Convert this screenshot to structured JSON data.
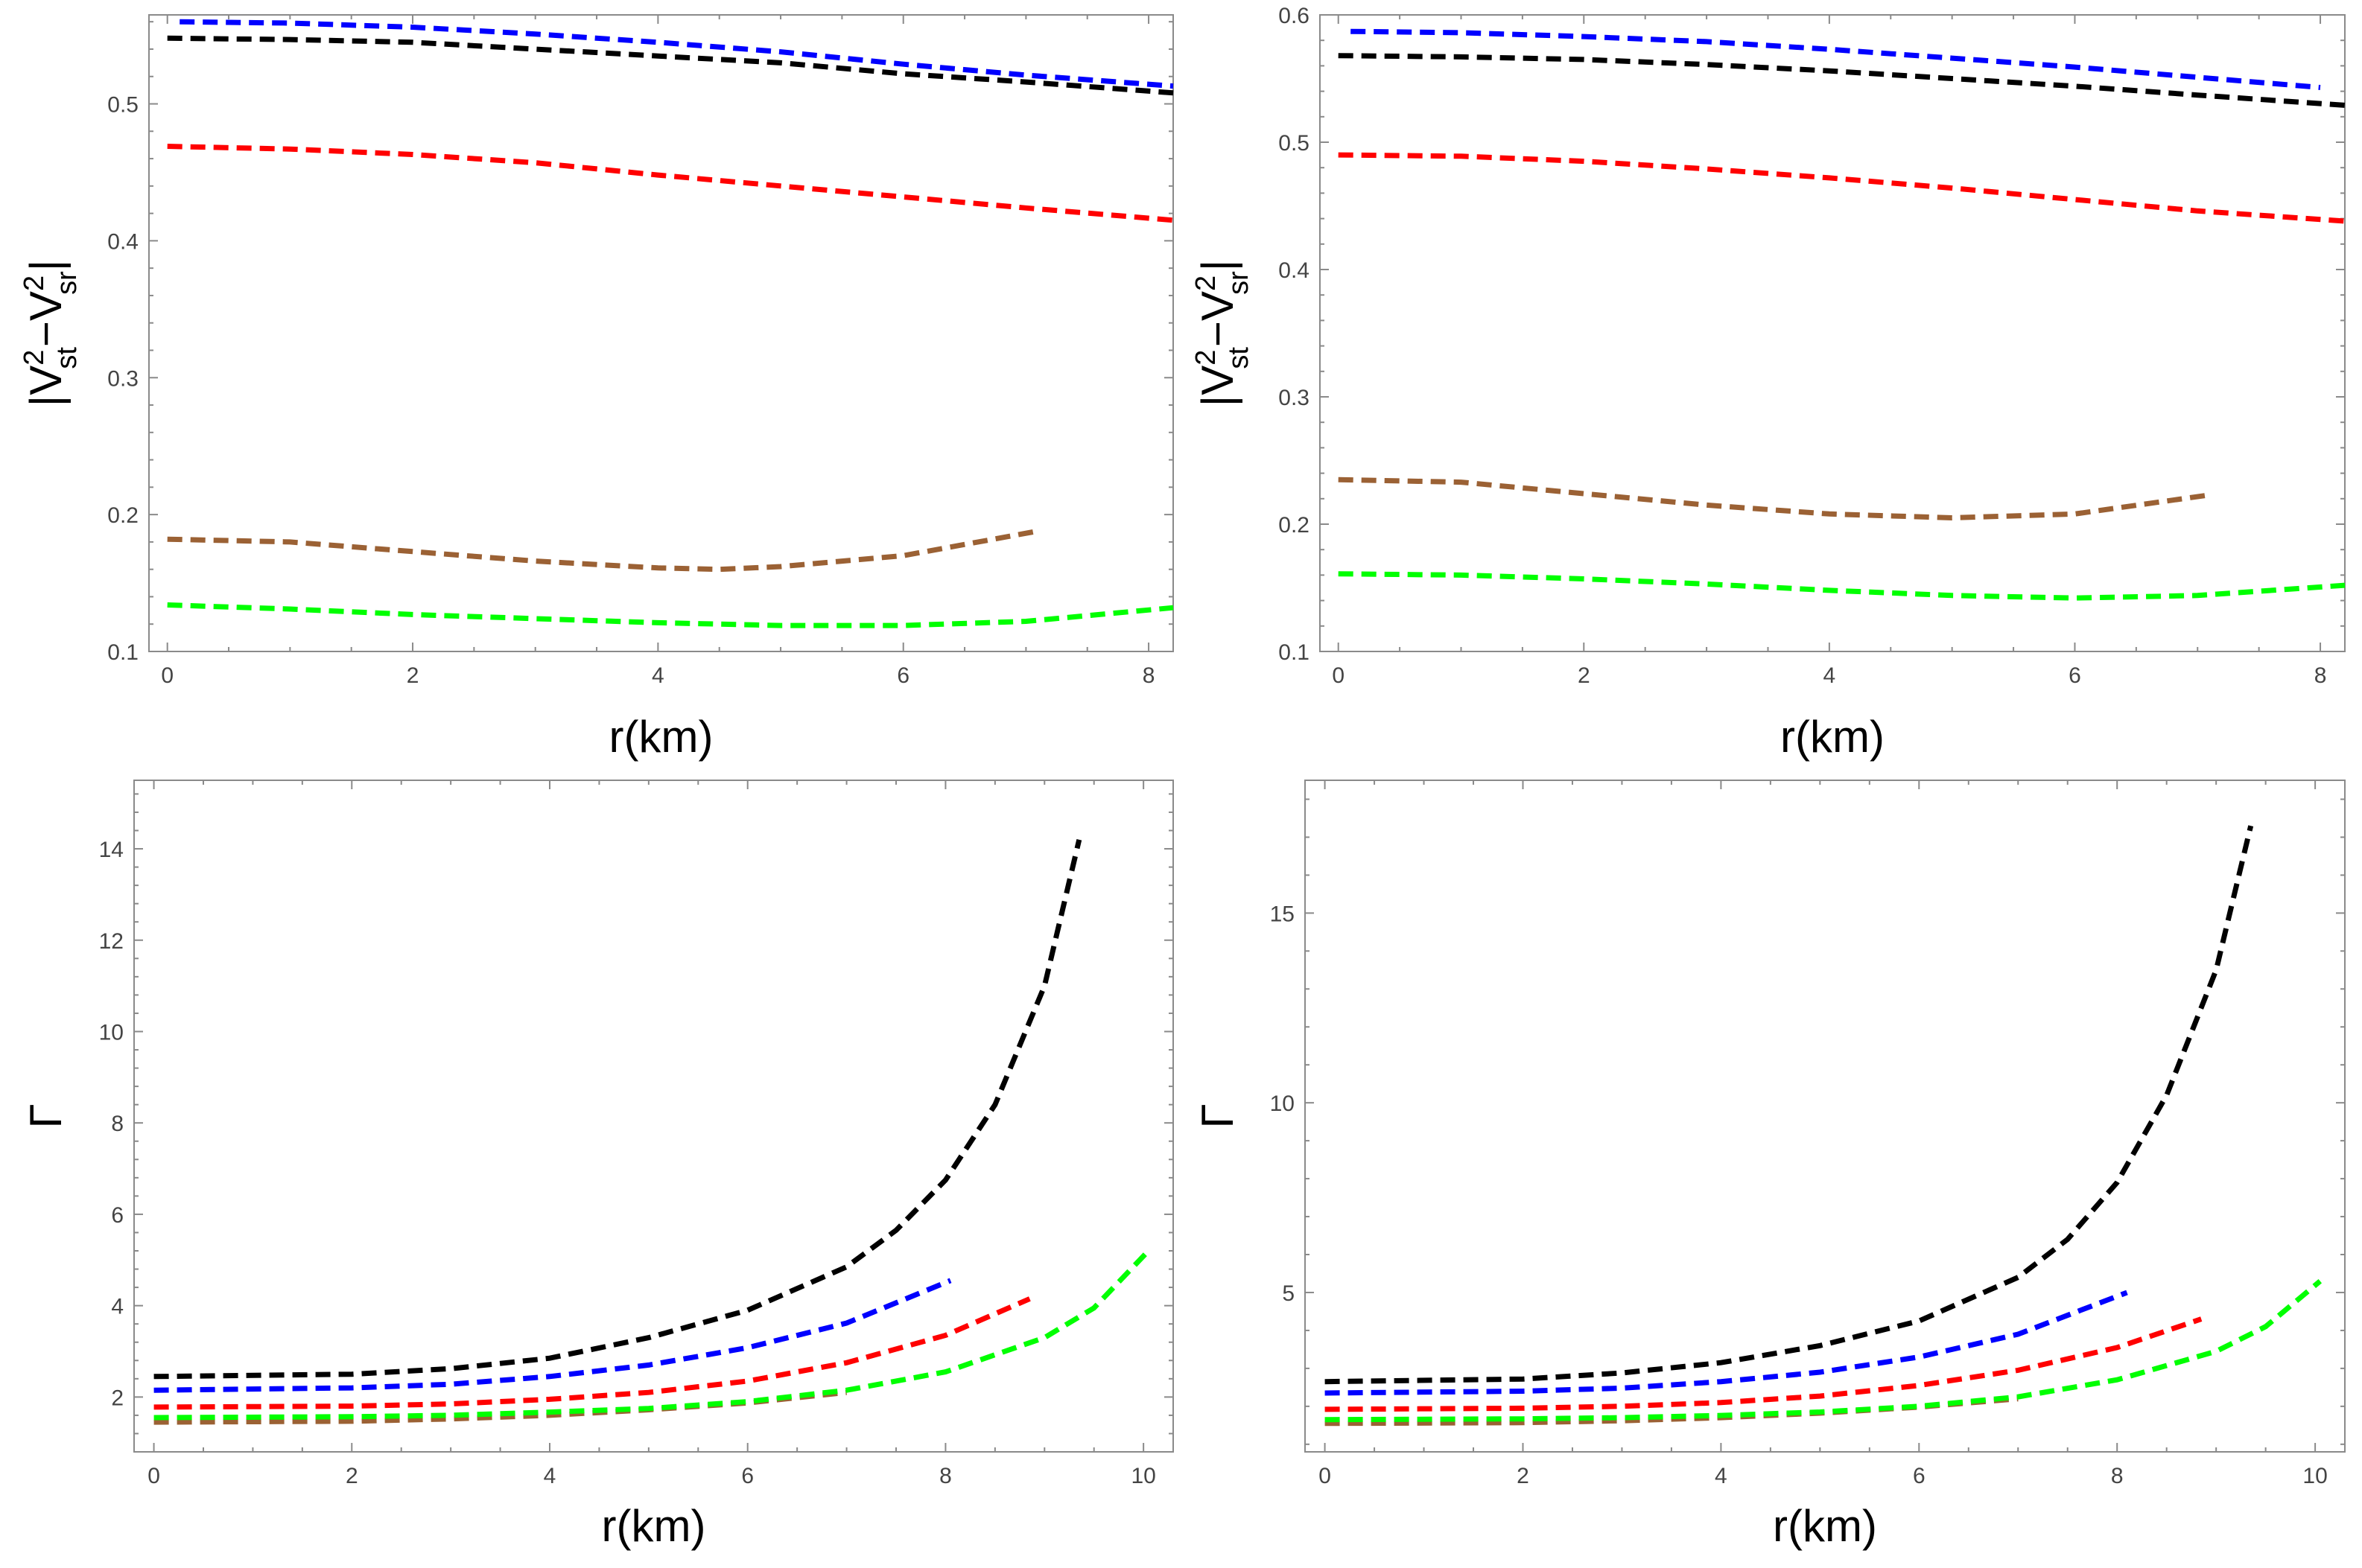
{
  "figure": {
    "description_panels": 4
  },
  "chart_data": [
    {
      "type": "line",
      "panel": "top-left",
      "title": "",
      "xlabel": "r(km)",
      "ylabel": "|V²st−V²sr|",
      "ylabel_parts": {
        "open": "|V",
        "sup1": "2",
        "sub1": "st",
        "mid": "−V",
        "sup2": "2",
        "sub2": "sr",
        "close": "|"
      },
      "xlim": [
        -0.15,
        8.2
      ],
      "ylim": [
        0.1,
        0.565
      ],
      "xticks": [
        0,
        2,
        4,
        6,
        8
      ],
      "yticks": [
        0.1,
        0.2,
        0.3,
        0.4,
        0.5
      ],
      "ytick_labels": [
        "0.1",
        "0.2",
        "0.3",
        "0.4",
        "0.5"
      ],
      "series": [
        {
          "name": "blue",
          "color": "#0000ff",
          "x": [
            0.1,
            1,
            2,
            3,
            4,
            5,
            6,
            7,
            8.2
          ],
          "y": [
            0.56,
            0.559,
            0.556,
            0.551,
            0.545,
            0.538,
            0.529,
            0.521,
            0.513
          ]
        },
        {
          "name": "black",
          "color": "#000000",
          "x": [
            0,
            1,
            2,
            3,
            4,
            5,
            6,
            7,
            8.2
          ],
          "y": [
            0.548,
            0.547,
            0.545,
            0.54,
            0.535,
            0.53,
            0.522,
            0.516,
            0.508
          ]
        },
        {
          "name": "red",
          "color": "#ff0000",
          "x": [
            0,
            1,
            2,
            3,
            4,
            5,
            6,
            7,
            8.2
          ],
          "y": [
            0.469,
            0.467,
            0.463,
            0.457,
            0.448,
            0.44,
            0.432,
            0.424,
            0.415
          ]
        },
        {
          "name": "brown",
          "color": "#9b6134",
          "x": [
            0,
            1,
            2,
            3,
            4,
            4.5,
            5,
            6,
            7.1
          ],
          "y": [
            0.182,
            0.18,
            0.173,
            0.166,
            0.161,
            0.16,
            0.162,
            0.17,
            0.188
          ]
        },
        {
          "name": "green",
          "color": "#00ff00",
          "x": [
            0,
            1,
            2,
            3,
            4,
            5,
            6,
            7,
            8.2
          ],
          "y": [
            0.134,
            0.131,
            0.127,
            0.124,
            0.121,
            0.119,
            0.119,
            0.122,
            0.132
          ]
        }
      ]
    },
    {
      "type": "line",
      "panel": "top-right",
      "title": "",
      "xlabel": "r(km)",
      "ylabel": "|V²st−V²sr|",
      "ylabel_parts": {
        "open": "|V",
        "sup1": "2",
        "sub1": "st",
        "mid": "−V",
        "sup2": "2",
        "sub2": "sr",
        "close": "|"
      },
      "xlim": [
        -0.15,
        8.2
      ],
      "ylim": [
        0.1,
        0.6
      ],
      "xticks": [
        0,
        2,
        4,
        6,
        8
      ],
      "yticks": [
        0.1,
        0.2,
        0.3,
        0.4,
        0.5,
        0.6
      ],
      "ytick_labels": [
        "0.1",
        "0.2",
        "0.3",
        "0.4",
        "0.5",
        "0.6"
      ],
      "series": [
        {
          "name": "blue",
          "color": "#0000ff",
          "x": [
            0.1,
            1,
            2,
            3,
            4,
            5,
            6,
            7,
            8
          ],
          "y": [
            0.587,
            0.586,
            0.583,
            0.579,
            0.573,
            0.566,
            0.559,
            0.551,
            0.543
          ]
        },
        {
          "name": "black",
          "color": "#000000",
          "x": [
            0,
            1,
            2,
            3,
            4,
            5,
            6,
            7,
            8.2
          ],
          "y": [
            0.568,
            0.567,
            0.565,
            0.561,
            0.556,
            0.55,
            0.544,
            0.537,
            0.529
          ]
        },
        {
          "name": "red",
          "color": "#ff0000",
          "x": [
            0,
            1,
            2,
            3,
            4,
            5,
            6,
            7,
            8.2
          ],
          "y": [
            0.49,
            0.489,
            0.485,
            0.479,
            0.472,
            0.464,
            0.455,
            0.446,
            0.438
          ]
        },
        {
          "name": "brown",
          "color": "#9b6134",
          "x": [
            0,
            1,
            2,
            3,
            4,
            5,
            6,
            7.1
          ],
          "y": [
            0.235,
            0.233,
            0.224,
            0.215,
            0.208,
            0.205,
            0.208,
            0.223
          ]
        },
        {
          "name": "green",
          "color": "#00ff00",
          "x": [
            0,
            1,
            2,
            3,
            4,
            5,
            6,
            7,
            8.2
          ],
          "y": [
            0.161,
            0.16,
            0.157,
            0.153,
            0.148,
            0.144,
            0.142,
            0.144,
            0.152
          ]
        }
      ]
    },
    {
      "type": "line",
      "panel": "bottom-left",
      "title": "",
      "xlabel": "r(km)",
      "ylabel": "Γ",
      "xlim": [
        -0.2,
        10.3
      ],
      "ylim": [
        0.8,
        15.5
      ],
      "xticks": [
        0,
        2,
        4,
        6,
        8,
        10
      ],
      "yticks": [
        2,
        4,
        6,
        8,
        10,
        12,
        14
      ],
      "ytick_labels": [
        "2",
        "4",
        "6",
        "8",
        "10",
        "12",
        "14"
      ],
      "series": [
        {
          "name": "black",
          "color": "#000000",
          "x": [
            0,
            2,
            3,
            4,
            5,
            6,
            7,
            7.5,
            8,
            8.5,
            9,
            9.35
          ],
          "y": [
            2.45,
            2.5,
            2.62,
            2.85,
            3.3,
            3.9,
            4.85,
            5.65,
            6.75,
            8.4,
            11.0,
            14.2
          ]
        },
        {
          "name": "blue",
          "color": "#0000ff",
          "x": [
            0,
            2,
            3,
            4,
            5,
            6,
            7,
            8.05
          ],
          "y": [
            2.15,
            2.2,
            2.28,
            2.45,
            2.7,
            3.08,
            3.62,
            4.55
          ]
        },
        {
          "name": "red",
          "color": "#ff0000",
          "x": [
            0,
            2,
            3,
            4,
            5,
            6,
            7,
            8,
            8.85
          ],
          "y": [
            1.78,
            1.8,
            1.85,
            1.95,
            2.1,
            2.35,
            2.75,
            3.35,
            4.15
          ]
        },
        {
          "name": "brown",
          "color": "#9b6134",
          "x": [
            0,
            2,
            3,
            4,
            5,
            6,
            7
          ],
          "y": [
            1.45,
            1.47,
            1.52,
            1.6,
            1.72,
            1.87,
            2.1
          ]
        },
        {
          "name": "green",
          "color": "#00ff00",
          "x": [
            0,
            2,
            3,
            4,
            5,
            6,
            7,
            8,
            9,
            9.5,
            10.05
          ],
          "y": [
            1.55,
            1.57,
            1.6,
            1.67,
            1.75,
            1.9,
            2.15,
            2.55,
            3.3,
            3.95,
            5.2
          ]
        }
      ]
    },
    {
      "type": "line",
      "panel": "bottom-right",
      "title": "",
      "xlabel": "r(km)",
      "ylabel": "Γ",
      "xlim": [
        -0.2,
        10.3
      ],
      "ylim": [
        0.8,
        18.5
      ],
      "xticks": [
        0,
        2,
        4,
        6,
        8,
        10
      ],
      "yticks": [
        5,
        10,
        15
      ],
      "ytick_labels": [
        "5",
        "10",
        "15"
      ],
      "series": [
        {
          "name": "black",
          "color": "#000000",
          "x": [
            0,
            2,
            3,
            4,
            5,
            6,
            7,
            7.5,
            8,
            8.5,
            9,
            9.35
          ],
          "y": [
            2.65,
            2.72,
            2.88,
            3.15,
            3.6,
            4.25,
            5.4,
            6.4,
            7.9,
            10.2,
            13.5,
            17.3
          ]
        },
        {
          "name": "blue",
          "color": "#0000ff",
          "x": [
            0,
            2,
            3,
            4,
            5,
            6,
            7,
            8.1
          ],
          "y": [
            2.35,
            2.4,
            2.48,
            2.65,
            2.9,
            3.3,
            3.9,
            5.0
          ]
        },
        {
          "name": "red",
          "color": "#ff0000",
          "x": [
            0,
            2,
            3,
            4,
            5,
            6,
            7,
            8,
            8.85
          ],
          "y": [
            1.92,
            1.95,
            2.0,
            2.1,
            2.27,
            2.55,
            2.95,
            3.55,
            4.3
          ]
        },
        {
          "name": "brown",
          "color": "#9b6134",
          "x": [
            0,
            2,
            3,
            4,
            5,
            6,
            7
          ],
          "y": [
            1.55,
            1.57,
            1.62,
            1.7,
            1.82,
            1.98,
            2.2
          ]
        },
        {
          "name": "green",
          "color": "#00ff00",
          "x": [
            0,
            2,
            3,
            4,
            5,
            6,
            7,
            8,
            9,
            9.5,
            10.05
          ],
          "y": [
            1.65,
            1.67,
            1.7,
            1.76,
            1.85,
            2.0,
            2.25,
            2.7,
            3.45,
            4.1,
            5.3
          ]
        }
      ]
    }
  ]
}
